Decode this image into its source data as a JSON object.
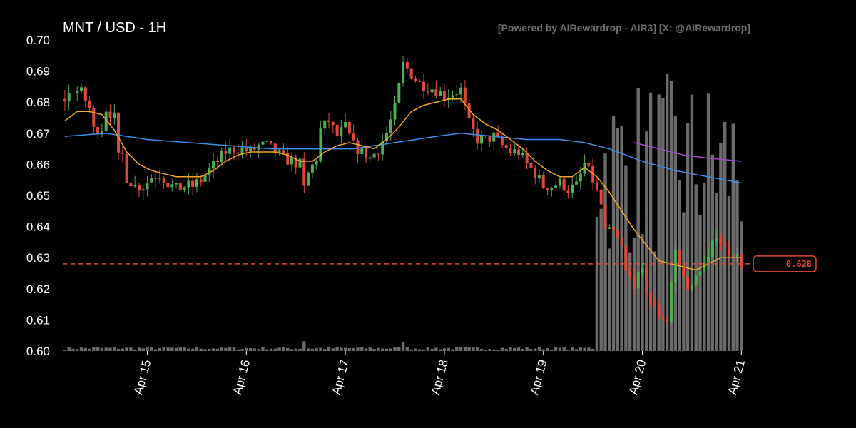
{
  "header": {
    "title": "MNT / USD - 1H",
    "credit": "[Powered by AIRewardrop - AIR3] [X: @AIRewardrop]"
  },
  "colors": {
    "up": "#4caf50",
    "down": "#e0483a",
    "volume": "#6b6b6b",
    "ma_fast": "#f5a623",
    "ma_slow": "#3d8ee8",
    "ma_long": "#a64ac9",
    "price_line": "#e0483a"
  },
  "chart_data": {
    "type": "candlestick",
    "title": "MNT / USD - 1H",
    "ylim": [
      0.6,
      0.7
    ],
    "yticks": [
      "0.70",
      "0.69",
      "0.68",
      "0.67",
      "0.66",
      "0.65",
      "0.64",
      "0.63",
      "0.62",
      "0.61",
      "0.60"
    ],
    "xticks": [
      {
        "label": "Apr 15",
        "t": 20
      },
      {
        "label": "Apr 16",
        "t": 44
      },
      {
        "label": "Apr 17",
        "t": 68
      },
      {
        "label": "Apr 18",
        "t": 92
      },
      {
        "label": "Apr 19",
        "t": 116
      },
      {
        "label": "Apr 20",
        "t": 140
      },
      {
        "label": "Apr 21",
        "t": 164
      }
    ],
    "t_range": [
      -0.5,
      165.5
    ],
    "close_anchors": [
      [
        0,
        0.681
      ],
      [
        2,
        0.684
      ],
      [
        4,
        0.683
      ],
      [
        6,
        0.678
      ],
      [
        7,
        0.671
      ],
      [
        9,
        0.672
      ],
      [
        10,
        0.678
      ],
      [
        12,
        0.675
      ],
      [
        13,
        0.662
      ],
      [
        14,
        0.663
      ],
      [
        15,
        0.656
      ],
      [
        17,
        0.653
      ],
      [
        19,
        0.653
      ],
      [
        21,
        0.656
      ],
      [
        23,
        0.657
      ],
      [
        25,
        0.654
      ],
      [
        27,
        0.652
      ],
      [
        29,
        0.653
      ],
      [
        31,
        0.653
      ],
      [
        33,
        0.655
      ],
      [
        35,
        0.658
      ],
      [
        37,
        0.661
      ],
      [
        39,
        0.664
      ],
      [
        41,
        0.665
      ],
      [
        43,
        0.665
      ],
      [
        45,
        0.664
      ],
      [
        47,
        0.666
      ],
      [
        49,
        0.666
      ],
      [
        51,
        0.664
      ],
      [
        53,
        0.662
      ],
      [
        55,
        0.661
      ],
      [
        57,
        0.66
      ],
      [
        58,
        0.652
      ],
      [
        59,
        0.657
      ],
      [
        61,
        0.662
      ],
      [
        62,
        0.671
      ],
      [
        64,
        0.674
      ],
      [
        66,
        0.669
      ],
      [
        68,
        0.672
      ],
      [
        70,
        0.666
      ],
      [
        72,
        0.664
      ],
      [
        74,
        0.662
      ],
      [
        76,
        0.665
      ],
      [
        78,
        0.67
      ],
      [
        80,
        0.678
      ],
      [
        82,
        0.692
      ],
      [
        84,
        0.689
      ],
      [
        86,
        0.686
      ],
      [
        88,
        0.685
      ],
      [
        90,
        0.684
      ],
      [
        92,
        0.682
      ],
      [
        94,
        0.683
      ],
      [
        96,
        0.684
      ],
      [
        98,
        0.673
      ],
      [
        100,
        0.668
      ],
      [
        102,
        0.668
      ],
      [
        104,
        0.669
      ],
      [
        106,
        0.666
      ],
      [
        108,
        0.664
      ],
      [
        110,
        0.664
      ],
      [
        112,
        0.66
      ],
      [
        114,
        0.657
      ],
      [
        116,
        0.653
      ],
      [
        118,
        0.653
      ],
      [
        120,
        0.654
      ],
      [
        122,
        0.652
      ],
      [
        124,
        0.653
      ],
      [
        126,
        0.66
      ],
      [
        128,
        0.655
      ],
      [
        130,
        0.647
      ],
      [
        131,
        0.638
      ],
      [
        133,
        0.638
      ],
      [
        135,
        0.633
      ],
      [
        136,
        0.625
      ],
      [
        138,
        0.622
      ],
      [
        140,
        0.625
      ],
      [
        142,
        0.615
      ],
      [
        144,
        0.612
      ],
      [
        146,
        0.61
      ],
      [
        147,
        0.622
      ],
      [
        148,
        0.632
      ],
      [
        150,
        0.623
      ],
      [
        152,
        0.62
      ],
      [
        154,
        0.627
      ],
      [
        156,
        0.629
      ],
      [
        158,
        0.638
      ],
      [
        160,
        0.633
      ],
      [
        162,
        0.632
      ],
      [
        164,
        0.628
      ]
    ],
    "ma_fast_anchors": [
      [
        0,
        0.674
      ],
      [
        3,
        0.677
      ],
      [
        6,
        0.677
      ],
      [
        9,
        0.676
      ],
      [
        12,
        0.671
      ],
      [
        15,
        0.664
      ],
      [
        18,
        0.66
      ],
      [
        21,
        0.658
      ],
      [
        24,
        0.657
      ],
      [
        27,
        0.656
      ],
      [
        30,
        0.656
      ],
      [
        33,
        0.656
      ],
      [
        36,
        0.658
      ],
      [
        39,
        0.661
      ],
      [
        42,
        0.663
      ],
      [
        45,
        0.664
      ],
      [
        48,
        0.664
      ],
      [
        51,
        0.664
      ],
      [
        54,
        0.663
      ],
      [
        57,
        0.661
      ],
      [
        60,
        0.661
      ],
      [
        63,
        0.664
      ],
      [
        66,
        0.666
      ],
      [
        69,
        0.667
      ],
      [
        72,
        0.666
      ],
      [
        75,
        0.665
      ],
      [
        78,
        0.668
      ],
      [
        81,
        0.672
      ],
      [
        84,
        0.677
      ],
      [
        87,
        0.679
      ],
      [
        90,
        0.68
      ],
      [
        93,
        0.681
      ],
      [
        96,
        0.681
      ],
      [
        99,
        0.676
      ],
      [
        102,
        0.673
      ],
      [
        105,
        0.671
      ],
      [
        108,
        0.668
      ],
      [
        111,
        0.665
      ],
      [
        114,
        0.661
      ],
      [
        117,
        0.658
      ],
      [
        120,
        0.656
      ],
      [
        123,
        0.656
      ],
      [
        126,
        0.659
      ],
      [
        129,
        0.656
      ],
      [
        132,
        0.651
      ],
      [
        135,
        0.645
      ],
      [
        138,
        0.639
      ],
      [
        141,
        0.634
      ],
      [
        144,
        0.629
      ],
      [
        147,
        0.628
      ],
      [
        150,
        0.627
      ],
      [
        153,
        0.626
      ],
      [
        156,
        0.628
      ],
      [
        159,
        0.63
      ],
      [
        162,
        0.63
      ],
      [
        164,
        0.63
      ]
    ],
    "ma_slow_anchors": [
      [
        0,
        0.669
      ],
      [
        10,
        0.67
      ],
      [
        20,
        0.668
      ],
      [
        30,
        0.667
      ],
      [
        40,
        0.666
      ],
      [
        50,
        0.665
      ],
      [
        60,
        0.665
      ],
      [
        70,
        0.665
      ],
      [
        80,
        0.667
      ],
      [
        90,
        0.669
      ],
      [
        96,
        0.67
      ],
      [
        104,
        0.669
      ],
      [
        112,
        0.668
      ],
      [
        120,
        0.668
      ],
      [
        126,
        0.667
      ],
      [
        132,
        0.665
      ],
      [
        140,
        0.661
      ],
      [
        148,
        0.658
      ],
      [
        156,
        0.656
      ],
      [
        164,
        0.654
      ]
    ],
    "ma_long_anchors": [
      [
        138,
        0.667
      ],
      [
        144,
        0.665
      ],
      [
        150,
        0.663
      ],
      [
        156,
        0.662
      ],
      [
        164,
        0.661
      ]
    ],
    "current_price": 0.628,
    "current_price_label": "0.628",
    "grid": false
  }
}
